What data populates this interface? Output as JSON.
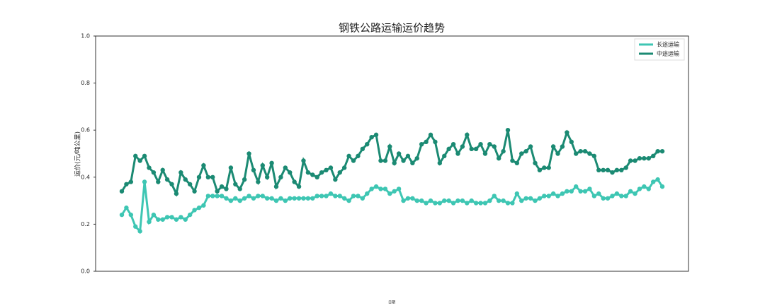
{
  "chart_data": {
    "type": "line",
    "title": "钢铁公路运输运价趋势",
    "y_label": "运价(元/吨公里)",
    "x_label": "日期",
    "categories": [
      null,
      null,
      null,
      null,
      null,
      null,
      null,
      null,
      null,
      null,
      null,
      null,
      null,
      null,
      null,
      null,
      null,
      null,
      null,
      null,
      null,
      null,
      null,
      null,
      null,
      null,
      null,
      null,
      null,
      null,
      null,
      null,
      null,
      null,
      null,
      null,
      null,
      null,
      null,
      null,
      null,
      null,
      null,
      null,
      null,
      null,
      null,
      null,
      null,
      null,
      null,
      null,
      null,
      null,
      null,
      null,
      null,
      null,
      null,
      null,
      null,
      null,
      null,
      null,
      null,
      null,
      null,
      null,
      null,
      null,
      null,
      null,
      null,
      null,
      null,
      null,
      null,
      null,
      null,
      null,
      null,
      null,
      null,
      null,
      null,
      null,
      null,
      null,
      null,
      null,
      null,
      null,
      null,
      null,
      null,
      null,
      null,
      null,
      null,
      null,
      null,
      null,
      null,
      null,
      null,
      null,
      null,
      null,
      null,
      null,
      null,
      null,
      null,
      null,
      null,
      null,
      null,
      null,
      null,
      null
    ],
    "series": [
      {
        "name": "长途运输",
        "color": "#3ec6b3",
        "values": [
          0.24,
          0.27,
          0.24,
          0.19,
          0.17,
          0.38,
          0.21,
          0.24,
          0.22,
          0.22,
          0.23,
          0.23,
          0.22,
          0.23,
          0.22,
          0.24,
          0.26,
          0.27,
          0.28,
          0.32,
          0.32,
          0.32,
          0.32,
          0.31,
          0.3,
          0.31,
          0.3,
          0.31,
          0.32,
          0.31,
          0.32,
          0.32,
          0.31,
          0.31,
          0.3,
          0.31,
          0.3,
          0.31,
          0.31,
          0.31,
          0.31,
          0.31,
          0.31,
          0.32,
          0.32,
          0.32,
          0.33,
          0.32,
          0.32,
          0.31,
          0.3,
          0.32,
          0.32,
          0.31,
          0.33,
          0.35,
          0.36,
          0.35,
          0.35,
          0.33,
          0.34,
          0.35,
          0.3,
          0.31,
          0.31,
          0.3,
          0.3,
          0.29,
          0.3,
          0.29,
          0.29,
          0.3,
          0.3,
          0.29,
          0.3,
          0.3,
          0.29,
          0.3,
          0.29,
          0.29,
          0.29,
          0.3,
          0.32,
          0.3,
          0.3,
          0.29,
          0.29,
          0.33,
          0.3,
          0.31,
          0.31,
          0.3,
          0.31,
          0.32,
          0.32,
          0.33,
          0.32,
          0.33,
          0.34,
          0.34,
          0.36,
          0.34,
          0.34,
          0.35,
          0.32,
          0.33,
          0.31,
          0.31,
          0.32,
          0.33,
          0.32,
          0.32,
          0.34,
          0.33,
          0.35,
          0.36,
          0.35,
          0.38,
          0.39,
          0.36
        ]
      },
      {
        "name": "中途运输",
        "color": "#1b8a73",
        "values": [
          0.34,
          0.37,
          0.38,
          0.49,
          0.47,
          0.49,
          0.44,
          0.42,
          0.38,
          0.43,
          0.39,
          0.37,
          0.33,
          0.42,
          0.39,
          0.37,
          0.34,
          0.4,
          0.45,
          0.4,
          0.4,
          0.34,
          0.36,
          0.35,
          0.44,
          0.37,
          0.35,
          0.39,
          0.5,
          0.43,
          0.38,
          0.45,
          0.4,
          0.46,
          0.36,
          0.4,
          0.44,
          0.42,
          0.38,
          0.36,
          0.47,
          0.42,
          0.41,
          0.4,
          0.42,
          0.43,
          0.44,
          0.39,
          0.42,
          0.44,
          0.49,
          0.47,
          0.49,
          0.52,
          0.54,
          0.57,
          0.58,
          0.47,
          0.47,
          0.53,
          0.46,
          0.5,
          0.47,
          0.49,
          0.46,
          0.48,
          0.54,
          0.55,
          0.58,
          0.55,
          0.46,
          0.49,
          0.52,
          0.54,
          0.5,
          0.53,
          0.58,
          0.52,
          0.52,
          0.54,
          0.5,
          0.54,
          0.53,
          0.48,
          0.51,
          0.6,
          0.47,
          0.46,
          0.5,
          0.51,
          0.53,
          0.46,
          0.43,
          0.44,
          0.44,
          0.53,
          0.5,
          0.53,
          0.59,
          0.55,
          0.5,
          0.51,
          0.51,
          0.5,
          0.49,
          0.43,
          0.43,
          0.43,
          0.42,
          0.43,
          0.43,
          0.44,
          0.47,
          0.47,
          0.48,
          0.48,
          0.48,
          0.49,
          0.51,
          0.51
        ]
      }
    ],
    "ylim": [
      0,
      1
    ],
    "yticks": [
      {
        "value": 0,
        "label": "0.0"
      },
      0.2,
      0.4,
      0.6,
      0.8,
      {
        "value": 1,
        "label": "1.0"
      }
    ],
    "legend": "upper right"
  }
}
